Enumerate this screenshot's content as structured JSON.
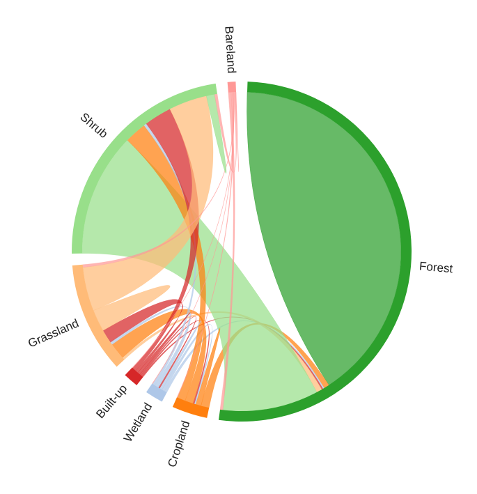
{
  "chart_data": {
    "type": "chord",
    "categories": [
      "Forest",
      "Cropland",
      "Wetland",
      "Built-up",
      "Grassland",
      "Shrub",
      "Bareland"
    ],
    "colors": [
      "#2ca02c",
      "#ff7f0e",
      "#aec7e8",
      "#d62728",
      "#ffbb78",
      "#98df8a",
      "#ff9896"
    ],
    "matrix": [
      [
        145,
        2,
        0.5,
        0.5,
        2,
        35,
        1
      ],
      [
        3,
        2,
        0.5,
        0.5,
        3,
        3,
        0.2
      ],
      [
        1,
        1,
        1,
        0.5,
        1.5,
        1,
        0.2
      ],
      [
        0.5,
        0.5,
        0.5,
        1,
        1,
        1.5,
        0.2
      ],
      [
        1,
        6,
        1,
        5,
        8,
        16,
        1
      ],
      [
        45,
        8,
        1,
        10,
        14,
        3,
        1
      ],
      [
        1,
        0.5,
        0.2,
        0.2,
        0.2,
        0.5,
        0.2
      ]
    ]
  }
}
